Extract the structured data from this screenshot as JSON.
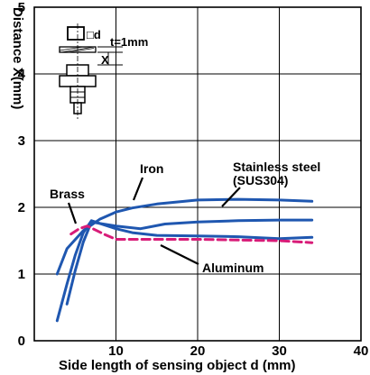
{
  "chart_data": {
    "type": "line",
    "title": "",
    "xlabel": "Side length of sensing object d (mm)",
    "ylabel": "Distance X(mm)",
    "xlim": [
      0,
      40
    ],
    "ylim": [
      0,
      5
    ],
    "xticks": [
      10,
      20,
      30,
      40
    ],
    "yticks": [
      0,
      1,
      2,
      3,
      4,
      5
    ],
    "grid": true,
    "legend": "none (series labelled by callouts)",
    "series": [
      {
        "name": "Iron",
        "color": "#1f57b0",
        "dash": false,
        "x": [
          2.8,
          4,
          6,
          8,
          10,
          12,
          15,
          20,
          25,
          30,
          34
        ],
        "y": [
          1.0,
          1.38,
          1.65,
          1.82,
          1.93,
          1.99,
          2.05,
          2.11,
          2.12,
          2.11,
          2.09
        ]
      },
      {
        "name": "Brass",
        "color": "#1f57b0",
        "dash": false,
        "x": [
          2.8,
          4,
          5,
          6,
          7,
          8,
          10,
          13,
          16,
          20,
          25,
          30,
          34
        ],
        "y": [
          0.3,
          0.85,
          1.28,
          1.62,
          1.8,
          1.76,
          1.72,
          1.68,
          1.75,
          1.78,
          1.8,
          1.81,
          1.81
        ]
      },
      {
        "name": "Stainless steel (SUS304)",
        "color": "#1f57b0",
        "dash": false,
        "x": [
          4,
          5,
          6,
          7,
          8,
          10,
          12,
          15,
          20,
          25,
          30,
          34
        ],
        "y": [
          0.55,
          1.05,
          1.48,
          1.78,
          1.76,
          1.68,
          1.62,
          1.58,
          1.57,
          1.56,
          1.53,
          1.55
        ]
      },
      {
        "name": "Aluminum",
        "color": "#d81c78",
        "dash": true,
        "x": [
          4.5,
          5.5,
          6.5,
          7.5,
          8.5,
          10,
          12,
          15,
          20,
          25,
          30,
          34
        ],
        "y": [
          1.6,
          1.68,
          1.72,
          1.66,
          1.6,
          1.52,
          1.52,
          1.52,
          1.52,
          1.51,
          1.5,
          1.47
        ]
      }
    ],
    "annotations": [
      {
        "text": "Brass"
      },
      {
        "text": "Iron"
      },
      {
        "text": "Stainless steel"
      },
      {
        "text": "(SUS304)"
      },
      {
        "text": "Aluminum"
      }
    ],
    "inset": {
      "square_label": "□d",
      "thickness_label": "t=1mm",
      "distance_label": "X"
    }
  }
}
